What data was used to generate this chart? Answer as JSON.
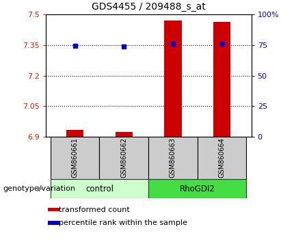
{
  "title": "GDS4455 / 209488_s_at",
  "samples": [
    "GSM860661",
    "GSM860662",
    "GSM860663",
    "GSM860664"
  ],
  "bar_values": [
    6.935,
    6.925,
    7.47,
    7.465
  ],
  "bar_bottom": 6.9,
  "dot_values": [
    7.348,
    7.342,
    7.358,
    7.355
  ],
  "ylim_left": [
    6.9,
    7.5
  ],
  "ylim_right": [
    0,
    100
  ],
  "yticks_left": [
    6.9,
    7.05,
    7.2,
    7.35,
    7.5
  ],
  "yticks_right": [
    0,
    25,
    50,
    75,
    100
  ],
  "ytick_labels_right": [
    "0",
    "25",
    "50",
    "75",
    "100%"
  ],
  "bar_color": "#cc0000",
  "dot_color": "#0000cc",
  "bar_width": 0.35,
  "left_tick_color": "#cc2200",
  "right_tick_color": "#0000cc",
  "legend_items": [
    "transformed count",
    "percentile rank within the sample"
  ],
  "legend_colors": [
    "#cc0000",
    "#0000cc"
  ],
  "group_label": "genotype/variation",
  "groups_info": [
    {
      "name": "control",
      "xstart": -0.5,
      "xend": 1.5,
      "color": "#ccffcc"
    },
    {
      "name": "RhoGDI2",
      "xstart": 1.5,
      "xend": 3.5,
      "color": "#44dd44"
    }
  ],
  "sample_box_color": "#cccccc",
  "arrow_color": "#888888",
  "title_fontsize": 10,
  "tick_fontsize": 8,
  "label_fontsize": 8,
  "legend_fontsize": 8
}
